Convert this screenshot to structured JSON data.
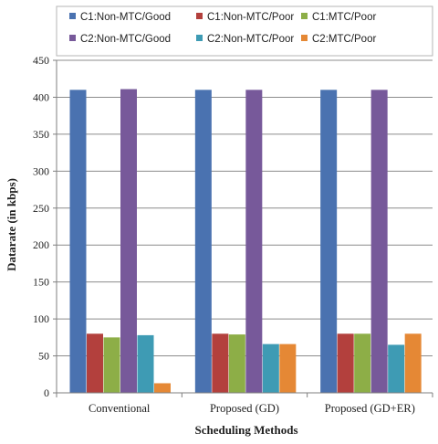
{
  "chart_data": {
    "type": "bar",
    "xlabel": "Scheduling Methods",
    "ylabel": "Datarate (in kbps)",
    "ylim": [
      0,
      450
    ],
    "yticks": [
      0,
      50,
      100,
      150,
      200,
      250,
      300,
      350,
      400,
      450
    ],
    "grid": true,
    "legend_position": "top",
    "categories": [
      "Conventional",
      "Proposed (GD)",
      "Proposed (GD+ER)"
    ],
    "series": [
      {
        "name": "C1:Non-MTC/Good",
        "color": "#4a72b0",
        "values": [
          410,
          410,
          410
        ]
      },
      {
        "name": "C1:Non-MTC/Poor",
        "color": "#b3403d",
        "values": [
          80,
          80,
          80
        ]
      },
      {
        "name": "C1:MTC/Poor",
        "color": "#8dae47",
        "values": [
          75,
          79,
          80
        ]
      },
      {
        "name": "C2:Non-MTC/Good",
        "color": "#77599a",
        "values": [
          411,
          410,
          410
        ]
      },
      {
        "name": "C2:Non-MTC/Poor",
        "color": "#3e9bb4",
        "values": [
          78,
          66,
          65
        ]
      },
      {
        "name": "C2:MTC/Poor",
        "color": "#e58835",
        "values": [
          13,
          66,
          80
        ]
      }
    ]
  }
}
